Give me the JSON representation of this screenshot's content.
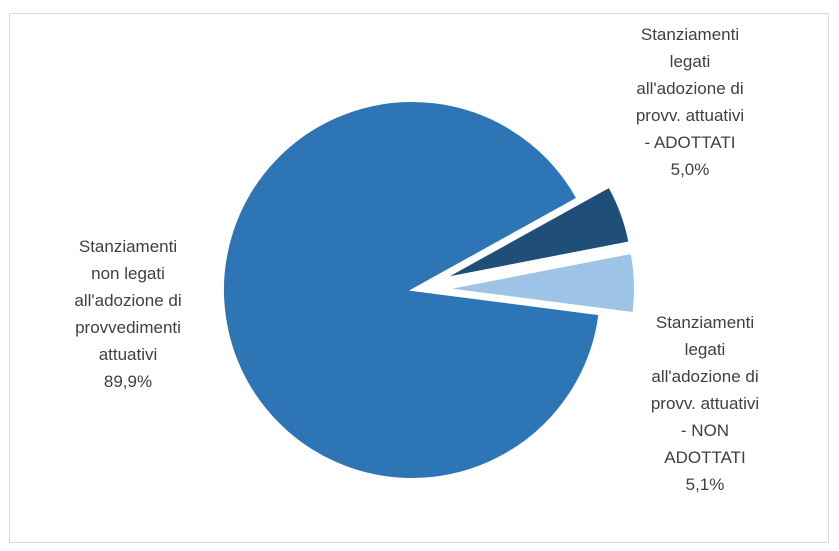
{
  "chart_data": {
    "type": "pie",
    "title": "",
    "slices": [
      {
        "label_lines": [
          "Stanziamenti",
          "legati",
          "all'adozione di",
          "provv. attuativi",
          "- ADOTTATI",
          "5,0%"
        ],
        "value": 5.0,
        "color": "#1f4e79",
        "exploded": true
      },
      {
        "label_lines": [
          "Stanziamenti",
          "legati",
          "all'adozione di",
          "provv. attuativi",
          "- NON",
          "ADOTTATI",
          "5,1%"
        ],
        "value": 5.1,
        "color": "#9dc3e6",
        "exploded": true
      },
      {
        "label_lines": [
          "Stanziamenti",
          "non legati",
          "all'adozione di",
          "provvedimenti",
          "attuativi",
          "89,9%"
        ],
        "value": 89.9,
        "color": "#2e75b6",
        "exploded": false
      }
    ],
    "start_angle_deg": 90,
    "direction": "clockwise"
  }
}
